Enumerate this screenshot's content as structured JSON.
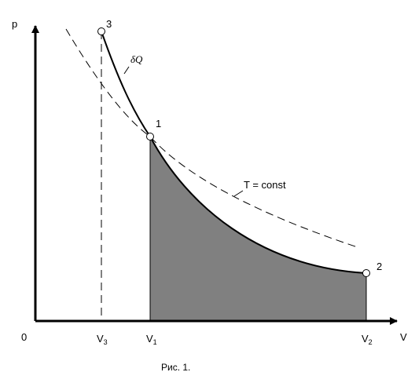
{
  "axes": {
    "y_label": "p",
    "x_label": "V",
    "origin_label": "0"
  },
  "ticks": {
    "v3": {
      "main": "V",
      "sub": "3"
    },
    "v1": {
      "main": "V",
      "sub": "1"
    },
    "v2": {
      "main": "V",
      "sub": "2"
    }
  },
  "points": {
    "p1": "1",
    "p2": "2",
    "p3": "3"
  },
  "annotations": {
    "heat": "δQ",
    "isotherm": "T = const"
  },
  "caption": "Рис. 1.",
  "colors": {
    "work_area_fill": "#808080",
    "line": "#000000",
    "background": "#ffffff"
  }
}
